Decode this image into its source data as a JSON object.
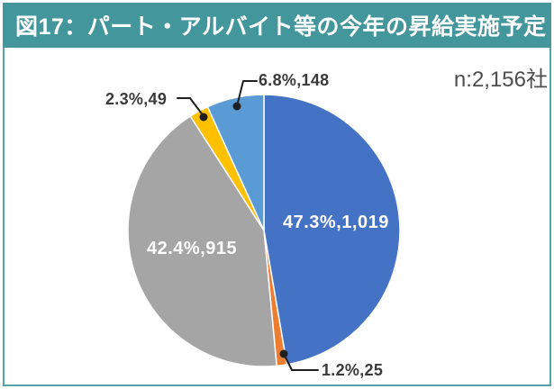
{
  "header": {
    "title": "図17：パート・アルバイト等の今年の昇給実施予定"
  },
  "annotations": {
    "sample_size": "n:2,156社"
  },
  "colors": {
    "header_bg": "#43969c",
    "card_border": "#52a5aa",
    "leader_line": "#1f1f1f",
    "inside_label_text": "#ffffff",
    "outside_label_text": "#3a3a3a"
  },
  "chart_data": {
    "type": "pie",
    "title": "図17：パート・アルバイト等の今年の昇給実施予定",
    "sample_note": "n:2,156社",
    "start_angle_deg": -90,
    "direction": "clockwise",
    "legend_position": "none",
    "label_format": "percent,count",
    "total_count": 2156,
    "slices": [
      {
        "pct": 47.3,
        "count": 1019,
        "label": "47.3%,1,019",
        "color": "#4472C4",
        "label_placement": "inside"
      },
      {
        "pct": 1.2,
        "count": 25,
        "label": "1.2%,25",
        "color": "#ED7D31",
        "label_placement": "outside"
      },
      {
        "pct": 42.4,
        "count": 915,
        "label": "42.4%,915",
        "color": "#A5A5A5",
        "label_placement": "inside"
      },
      {
        "pct": 2.3,
        "count": 49,
        "label": "2.3%,49",
        "color": "#FFC000",
        "label_placement": "outside"
      },
      {
        "pct": 6.8,
        "count": 148,
        "label": "6.8%,148",
        "color": "#5B9BD5",
        "label_placement": "outside"
      }
    ]
  }
}
